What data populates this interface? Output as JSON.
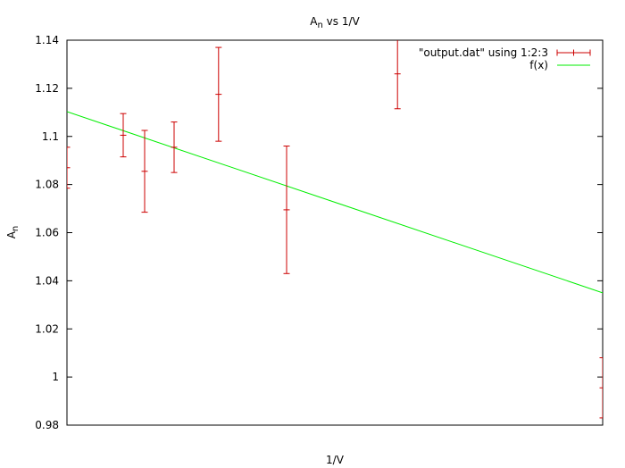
{
  "chart_data": {
    "type": "scatter",
    "title_main": "A",
    "title_sub": "n",
    "title_rest": " vs 1/V",
    "xlabel": "1/V",
    "ylabel_main": "A",
    "ylabel_sub": "n",
    "xlim": [
      0,
      1
    ],
    "ylim": [
      0.98,
      1.14
    ],
    "grid": false,
    "x_ticks_labeled": false,
    "y_ticks": [
      "0.98",
      "1",
      "1.02",
      "1.04",
      "1.06",
      "1.08",
      "1.1",
      "1.12",
      "1.14"
    ],
    "legend_position": "top-right",
    "series": [
      {
        "name": "\"output.dat\" using 1:2:3",
        "style": "errorbars",
        "color": "#cc0000",
        "points": [
          {
            "x": 0.0,
            "y": 1.087,
            "err": 0.0085
          },
          {
            "x": 0.105,
            "y": 1.1005,
            "err": 0.009
          },
          {
            "x": 0.145,
            "y": 1.0855,
            "err": 0.017
          },
          {
            "x": 0.2,
            "y": 1.0955,
            "err": 0.0105
          },
          {
            "x": 0.283,
            "y": 1.1175,
            "err": 0.0195
          },
          {
            "x": 0.41,
            "y": 1.0695,
            "err": 0.0265
          },
          {
            "x": 0.617,
            "y": 1.126,
            "err": 0.0145
          },
          {
            "x": 1.0,
            "y": 0.9955,
            "err": 0.0125
          }
        ]
      },
      {
        "name": "f(x)",
        "style": "line",
        "color": "#00ee00",
        "points": [
          {
            "x": 0.0,
            "y": 1.1103
          },
          {
            "x": 1.0,
            "y": 1.035
          }
        ]
      }
    ]
  }
}
